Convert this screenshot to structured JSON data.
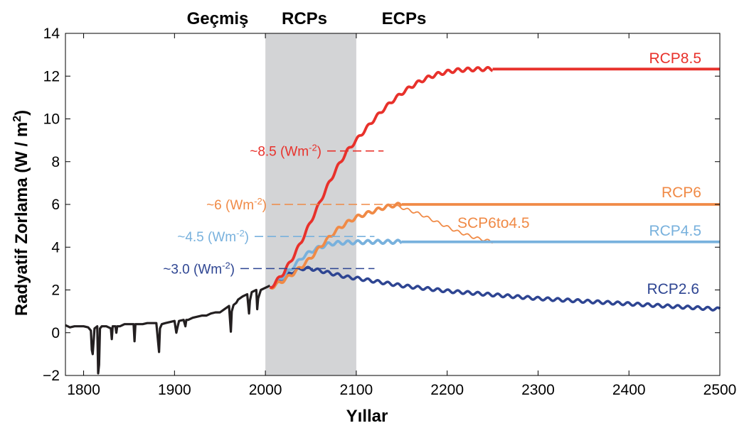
{
  "colors": {
    "historical": "#231f20",
    "rcp85": "#e8312b",
    "rcp6": "#f08a46",
    "scp": "#f08a46",
    "rcp45": "#78b1dd",
    "rcp26": "#2e4592",
    "rcp_band": "#d3d4d6"
  },
  "periods": {
    "past": "Geçmiş",
    "rcp": "RCPs",
    "ecp": "ECPs"
  },
  "chart_data": {
    "type": "line",
    "xlabel": "Yıllar",
    "ylabel": "Radyatif Zorlama (W / m",
    "ylabel_sup": "2",
    "ylabel_end": ")",
    "xlim": [
      1780,
      2500
    ],
    "ylim": [
      -2,
      14
    ],
    "xticks": [
      1800,
      1900,
      2000,
      2100,
      2200,
      2300,
      2400,
      2500
    ],
    "yticks": [
      -2,
      0,
      2,
      4,
      6,
      8,
      10,
      12,
      14
    ],
    "ytick_labels": [
      "−2",
      "0",
      "2",
      "4",
      "6",
      "8",
      "10",
      "12",
      "14"
    ],
    "grid": false,
    "shaded_band": {
      "x": [
        2000,
        2100
      ],
      "label": "RCPs"
    },
    "series": [
      {
        "key": "historical",
        "x": [
          1780,
          1785,
          1790,
          1795,
          1800,
          1805,
          1808,
          1809,
          1810,
          1812,
          1815,
          1816,
          1817,
          1818,
          1820,
          1823,
          1825,
          1830,
          1831,
          1832,
          1835,
          1836,
          1837,
          1840,
          1845,
          1850,
          1855,
          1856,
          1857,
          1860,
          1865,
          1870,
          1875,
          1880,
          1883,
          1884,
          1886,
          1890,
          1895,
          1900,
          1902,
          1903,
          1905,
          1910,
          1912,
          1913,
          1915,
          1920,
          1925,
          1930,
          1935,
          1940,
          1945,
          1950,
          1955,
          1960,
          1962,
          1963,
          1965,
          1968,
          1970,
          1975,
          1980,
          1982,
          1983,
          1985,
          1990,
          1991,
          1992,
          1995,
          2000,
          2005
        ],
        "values": [
          0.35,
          0.25,
          0.3,
          0.3,
          0.3,
          0.25,
          0.1,
          -0.8,
          -1.0,
          0.2,
          0.3,
          -1.9,
          -1.5,
          0.2,
          0.3,
          0.3,
          0.3,
          0.2,
          -0.3,
          0.3,
          0.3,
          0.0,
          0.3,
          0.3,
          0.4,
          0.4,
          0.4,
          -0.4,
          0.4,
          0.4,
          0.4,
          0.45,
          0.45,
          0.45,
          -0.9,
          0.2,
          0.4,
          0.45,
          0.5,
          0.55,
          0.0,
          0.2,
          0.55,
          0.6,
          0.3,
          0.6,
          0.6,
          0.7,
          0.75,
          0.8,
          0.8,
          0.9,
          0.95,
          0.95,
          1.1,
          1.25,
          0.05,
          1.0,
          1.3,
          1.4,
          1.55,
          1.7,
          1.8,
          0.9,
          1.5,
          1.9,
          2.0,
          1.1,
          1.6,
          2.0,
          2.1,
          2.2
        ]
      },
      {
        "key": "rcp26",
        "name": "RCP2.6",
        "x": [
          2005,
          2010,
          2020,
          2030,
          2040,
          2050,
          2060,
          2070,
          2080,
          2090,
          2100,
          2150,
          2200,
          2300,
          2400,
          2500
        ],
        "values": [
          2.1,
          2.3,
          2.6,
          2.85,
          3.0,
          3.0,
          2.9,
          2.8,
          2.7,
          2.6,
          2.55,
          2.2,
          1.95,
          1.6,
          1.35,
          1.1
        ]
      },
      {
        "key": "rcp45",
        "name": "RCP4.5",
        "x": [
          2005,
          2010,
          2020,
          2030,
          2040,
          2050,
          2060,
          2070,
          2080,
          2090,
          2100,
          2120,
          2150,
          2500
        ],
        "values": [
          2.1,
          2.3,
          2.65,
          3.05,
          3.5,
          3.8,
          4.0,
          4.15,
          4.2,
          4.22,
          4.23,
          4.25,
          4.25,
          4.25
        ]
      },
      {
        "key": "rcp6",
        "name": "RCP6",
        "x": [
          2005,
          2010,
          2020,
          2030,
          2040,
          2050,
          2060,
          2070,
          2080,
          2090,
          2100,
          2110,
          2120,
          2130,
          2140,
          2150,
          2500
        ],
        "values": [
          2.1,
          2.2,
          2.45,
          2.75,
          3.1,
          3.5,
          4.0,
          4.45,
          4.85,
          5.15,
          5.4,
          5.55,
          5.7,
          5.85,
          5.95,
          6.0,
          6.0
        ]
      },
      {
        "key": "scp",
        "name": "SCP6to4.5",
        "x": [
          2140,
          2150,
          2160,
          2170,
          2180,
          2190,
          2200,
          2210,
          2220,
          2230,
          2240,
          2250
        ],
        "values": [
          5.95,
          5.85,
          5.7,
          5.55,
          5.35,
          5.15,
          4.95,
          4.75,
          4.6,
          4.45,
          4.35,
          4.25
        ]
      },
      {
        "key": "rcp85",
        "name": "RCP8.5",
        "x": [
          2005,
          2010,
          2020,
          2030,
          2040,
          2050,
          2060,
          2070,
          2080,
          2090,
          2100,
          2110,
          2120,
          2130,
          2140,
          2150,
          2160,
          2170,
          2180,
          2190,
          2200,
          2210,
          2220,
          2230,
          2240,
          2250,
          2500
        ],
        "values": [
          2.1,
          2.3,
          2.8,
          3.5,
          4.3,
          5.2,
          6.1,
          7.0,
          7.8,
          8.5,
          9.0,
          9.5,
          10.0,
          10.45,
          10.85,
          11.2,
          11.5,
          11.75,
          11.95,
          12.1,
          12.2,
          12.27,
          12.3,
          12.32,
          12.33,
          12.33,
          12.33
        ]
      }
    ],
    "annotations": [
      {
        "key": "ann85",
        "base": "~8.5 (Wm",
        "sup": "-2",
        "end": ")",
        "y": 8.5,
        "x_end": 2130
      },
      {
        "key": "ann6",
        "base": "~6 (Wm",
        "sup": "-2",
        "end": ")",
        "y": 6.0,
        "x_end": 2145
      },
      {
        "key": "ann45",
        "base": "~4.5 (Wm",
        "sup": "-2",
        "end": ")",
        "y": 4.5,
        "x_end": 2120
      },
      {
        "key": "ann3",
        "base": "~3.0 (Wm",
        "sup": "-2",
        "end": ")",
        "y": 3.0,
        "x_end": 2120
      }
    ]
  }
}
